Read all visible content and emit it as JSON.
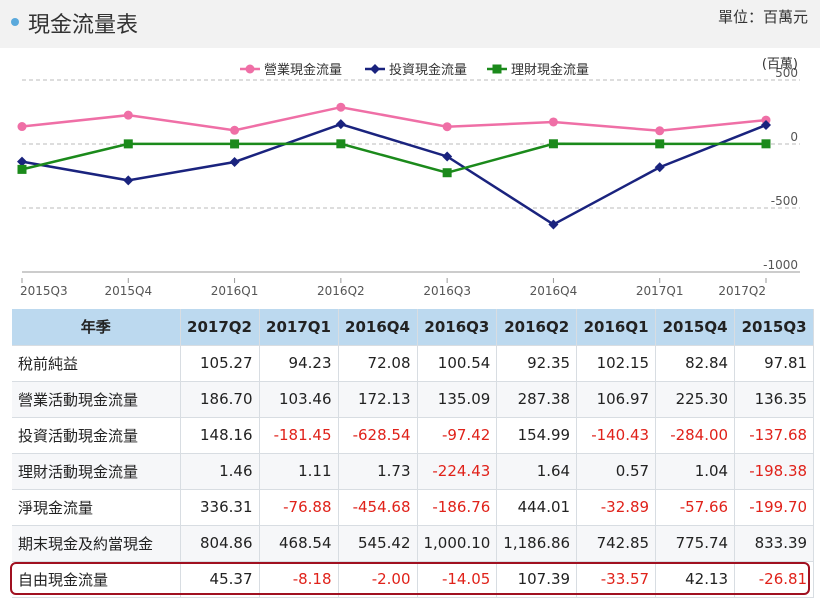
{
  "header": {
    "title": "現金流量表",
    "unit": "單位：百萬元"
  },
  "chart_data": {
    "type": "line",
    "x": [
      "2015Q3",
      "2015Q4",
      "2016Q1",
      "2016Q2",
      "2016Q3",
      "2016Q4",
      "2017Q1",
      "2017Q2"
    ],
    "x_tick_labels": [
      "2015Q3",
      "2015Q4",
      "2016Q1",
      "2016Q2",
      "2016Q3",
      "2016Q4",
      "2017Q1",
      "2017Q2"
    ],
    "y_unit_label": "(百萬)",
    "y_ticks": [
      500,
      0,
      -500,
      -1000
    ],
    "y_tick_labels": [
      "500",
      "0",
      "-500",
      "-1000"
    ],
    "ylim": [
      -1000,
      500
    ],
    "grid": "horizontal dashed",
    "legend_position": "top",
    "series": [
      {
        "name": "營業現金流量",
        "color": "#ef6fa6",
        "marker": "circle",
        "values": [
          136.35,
          225.3,
          106.97,
          287.38,
          135.09,
          172.13,
          103.46,
          186.7
        ]
      },
      {
        "name": "投資現金流量",
        "color": "#1a237e",
        "marker": "diamond",
        "values": [
          -137.68,
          -284.0,
          -140.43,
          154.99,
          -97.42,
          -628.54,
          -181.45,
          148.16
        ]
      },
      {
        "name": "理財現金流量",
        "color": "#1b8a1b",
        "marker": "square",
        "values": [
          -198.38,
          1.04,
          0.57,
          1.64,
          -224.43,
          1.73,
          1.11,
          1.46
        ]
      }
    ]
  },
  "table": {
    "headers": [
      "年季",
      "2017Q2",
      "2017Q1",
      "2016Q4",
      "2016Q3",
      "2016Q2",
      "2016Q1",
      "2015Q4",
      "2015Q3"
    ],
    "rows": [
      {
        "label": "稅前純益",
        "values": [
          "105.27",
          "94.23",
          "72.08",
          "100.54",
          "92.35",
          "102.15",
          "82.84",
          "97.81"
        ]
      },
      {
        "label": "營業活動現金流量",
        "values": [
          "186.70",
          "103.46",
          "172.13",
          "135.09",
          "287.38",
          "106.97",
          "225.30",
          "136.35"
        ]
      },
      {
        "label": "投資活動現金流量",
        "values": [
          "148.16",
          "-181.45",
          "-628.54",
          "-97.42",
          "154.99",
          "-140.43",
          "-284.00",
          "-137.68"
        ]
      },
      {
        "label": "理財活動現金流量",
        "values": [
          "1.46",
          "1.11",
          "1.73",
          "-224.43",
          "1.64",
          "0.57",
          "1.04",
          "-198.38"
        ]
      },
      {
        "label": "淨現金流量",
        "values": [
          "336.31",
          "-76.88",
          "-454.68",
          "-186.76",
          "444.01",
          "-32.89",
          "-57.66",
          "-199.70"
        ]
      },
      {
        "label": "期末現金及約當現金",
        "values": [
          "804.86",
          "468.54",
          "545.42",
          "1,000.10",
          "1,186.86",
          "742.85",
          "775.74",
          "833.39"
        ]
      },
      {
        "label": "自由現金流量",
        "values": [
          "45.37",
          "-8.18",
          "-2.00",
          "-14.05",
          "107.39",
          "-33.57",
          "42.13",
          "-26.81"
        ]
      }
    ]
  }
}
